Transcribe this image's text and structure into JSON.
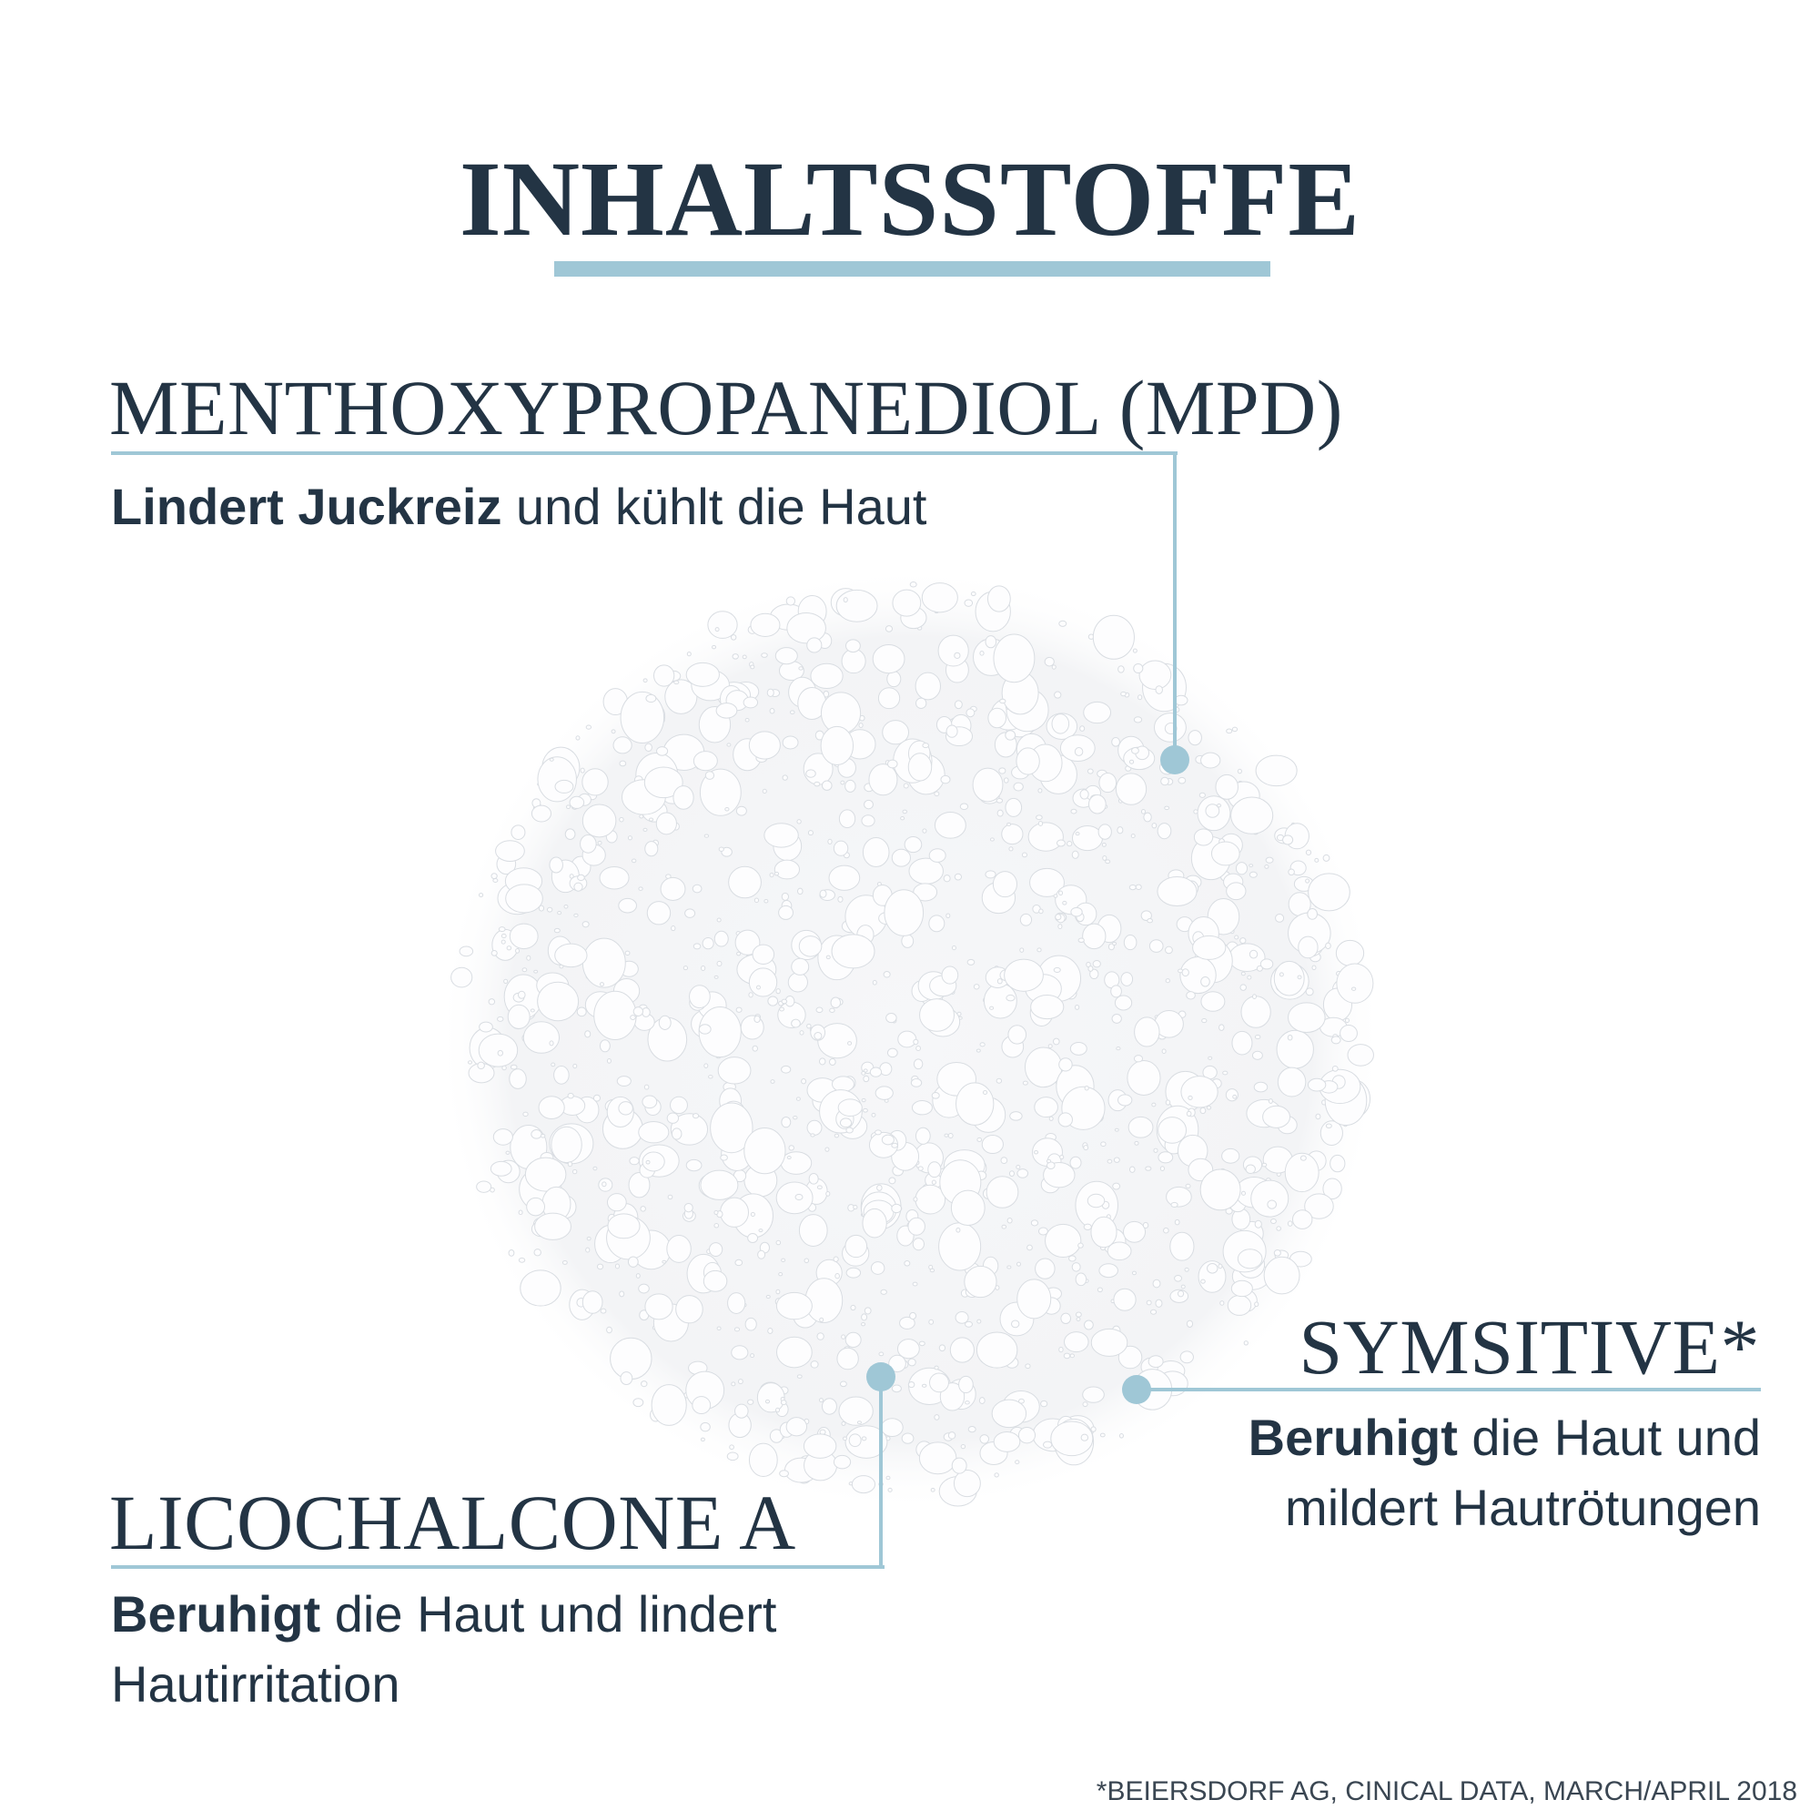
{
  "title": "INHALTSSTOFFE",
  "accent_color": "#9fc7d6",
  "text_color": "#233444",
  "image": "cream-droplet-texture",
  "ingredients": [
    {
      "name": "MENTHOXYPROPANEDIOL (MPD)",
      "bold": "Lindert Juckreiz",
      "text": " und kühlt die Haut"
    },
    {
      "name": "LICOCHALCONE A",
      "bold": "Beruhigt",
      "text": " die Haut und lindert",
      "text2": "Hautirritation"
    },
    {
      "name": "SYMSITIVE*",
      "bold": "Beruhigt",
      "text": " die Haut und",
      "text2": "mildert Hautrötungen"
    }
  ],
  "footnote": "*BEIERSDORF AG, CINICAL DATA, MARCH/APRIL 2018"
}
